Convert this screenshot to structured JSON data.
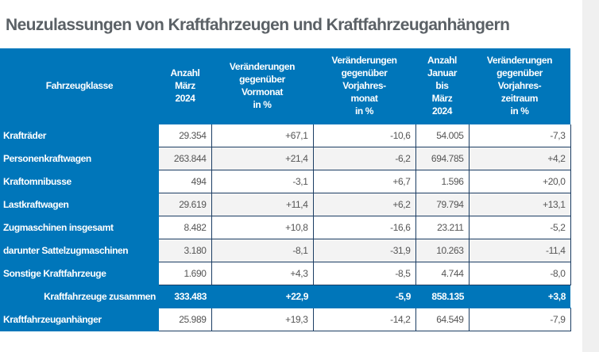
{
  "title": "Neuzulassungen von Kraftfahrzeugen und Kraftfahrzeuganhängern",
  "headers": [
    "Fahrzeugklasse",
    "Anzahl\nMärz\n2024",
    "Veränderungen\ngegenüber\nVormonat\nin %",
    "Veränderungen\ngegenüber\nVorjahres-\nmonat\nin %",
    "Anzahl\nJanuar\nbis\nMärz\n2024",
    "Veränderungen\ngegenüber\nVorjahres-\nzeitraum\nin %"
  ],
  "rows": [
    [
      "Krafträder",
      "29.354",
      "+67,1",
      "-10,6",
      "54.005",
      "-7,3"
    ],
    [
      "Personenkraftwagen",
      "263.844",
      "+21,4",
      "-6,2",
      "694.785",
      "+4,2"
    ],
    [
      "Kraftomnibusse",
      "494",
      "-3,1",
      "+6,7",
      "1.596",
      "+20,0"
    ],
    [
      "Lastkraftwagen",
      "29.619",
      "+11,4",
      "+6,2",
      "79.794",
      "+13,1"
    ],
    [
      "Zugmaschinen insgesamt",
      "8.482",
      "+10,8",
      "-16,6",
      "23.211",
      "-5,2"
    ],
    [
      "darunter Sattelzugmaschinen",
      "3.180",
      "-8,1",
      "-31,9",
      "10.263",
      "-11,4"
    ],
    [
      "Sonstige Kraftfahrzeuge",
      "1.690",
      "+4,3",
      "-8,5",
      "4.744",
      "-8,0"
    ],
    [
      "Kraftfahrzeuge zusammen",
      "333.483",
      "+22,9",
      "-5,9",
      "858.135",
      "+3,8"
    ],
    [
      "Kraftfahrzeuganhänger",
      "25.989",
      "+19,3",
      "-14,2",
      "64.549",
      "-7,9"
    ]
  ],
  "colors": {
    "header_blue": "#0076ba",
    "title_gray": "#5b6166",
    "border_navy": "#1b3d63"
  }
}
